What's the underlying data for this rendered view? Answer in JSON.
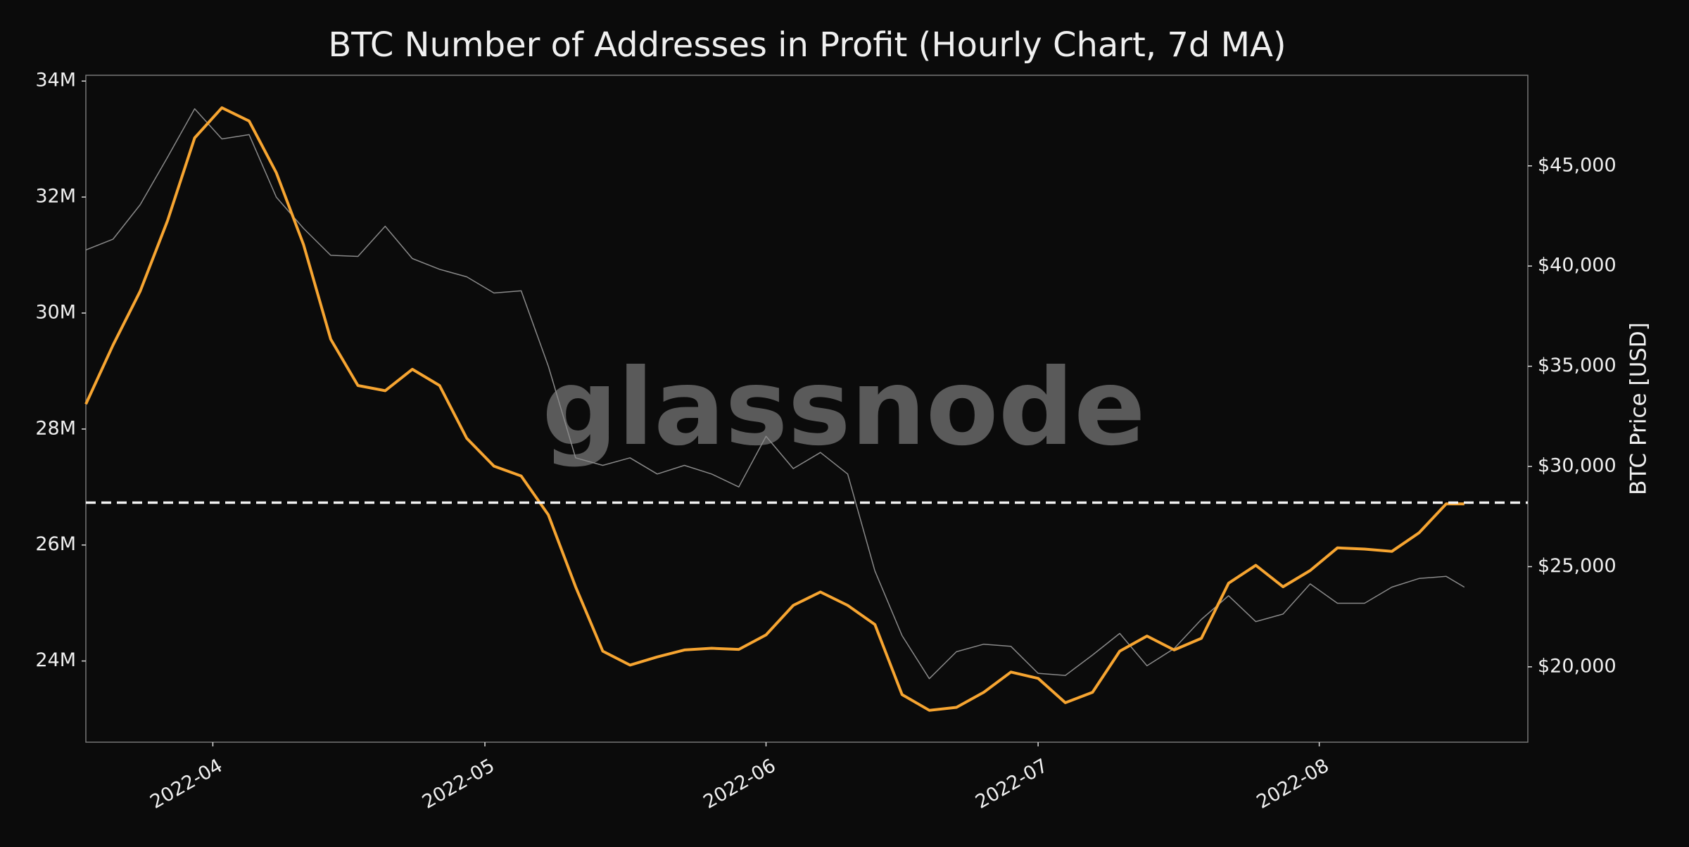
{
  "chart_data": {
    "type": "line",
    "title": "BTC Number of Addresses in Profit (Hourly Chart, 7d MA)",
    "y2label": "BTC Price [USD]",
    "watermark": "glassnode",
    "x": [
      "2022-03-18",
      "2022-03-21",
      "2022-03-24",
      "2022-03-27",
      "2022-03-30",
      "2022-04-02",
      "2022-04-05",
      "2022-04-08",
      "2022-04-11",
      "2022-04-14",
      "2022-04-17",
      "2022-04-20",
      "2022-04-23",
      "2022-04-26",
      "2022-04-29",
      "2022-05-02",
      "2022-05-05",
      "2022-05-08",
      "2022-05-11",
      "2022-05-14",
      "2022-05-17",
      "2022-05-20",
      "2022-05-23",
      "2022-05-26",
      "2022-05-29",
      "2022-06-01",
      "2022-06-04",
      "2022-06-07",
      "2022-06-10",
      "2022-06-13",
      "2022-06-16",
      "2022-06-19",
      "2022-06-22",
      "2022-06-25",
      "2022-06-28",
      "2022-07-01",
      "2022-07-04",
      "2022-07-07",
      "2022-07-10",
      "2022-07-13",
      "2022-07-16",
      "2022-07-19",
      "2022-07-22",
      "2022-07-25",
      "2022-07-28",
      "2022-07-31",
      "2022-08-03",
      "2022-08-06",
      "2022-08-09",
      "2022-08-12",
      "2022-08-15",
      "2022-08-17"
    ],
    "series": [
      {
        "color": "#8a8a8a",
        "axis": "y2",
        "values": [
          40805,
          41343,
          43063,
          45428,
          47848,
          46342,
          46557,
          43440,
          41880,
          40536,
          40482,
          41988,
          40375,
          39837,
          39461,
          38655,
          38762,
          34999,
          30430,
          30053,
          30430,
          29623,
          30053,
          29623,
          28978,
          31505,
          29892,
          30698,
          29623,
          24785,
          21559,
          19409,
          20753,
          21129,
          21021,
          19677,
          19570,
          20591,
          21667,
          20054,
          20914,
          22365,
          23548,
          22258,
          22634,
          24140,
          23172,
          23172,
          23978,
          24408,
          24516,
          23978
        ]
      },
      {
        "color": "#f7a531",
        "values": [
          28430000,
          29450000,
          30380000,
          31590000,
          33020000,
          33540000,
          33310000,
          32420000,
          31180000,
          29550000,
          28750000,
          28660000,
          29030000,
          28750000,
          27840000,
          27360000,
          27190000,
          26520000,
          25280000,
          24170000,
          23930000,
          24070000,
          24190000,
          24220000,
          24200000,
          24450000,
          24960000,
          25190000,
          24960000,
          24630000,
          23420000,
          23150000,
          23200000,
          23460000,
          23810000,
          23700000,
          23280000,
          23460000,
          24170000,
          24430000,
          24190000,
          24390000,
          25340000,
          25650000,
          25280000,
          25560000,
          25950000,
          25930000,
          25890000,
          26210000,
          26710000,
          26710000
        ]
      }
    ],
    "hline": 26730000,
    "xlim": [
      "2022-03-18",
      "2022-08-24"
    ],
    "xticks": [
      {
        "value": "2022-04-01",
        "label": "2022-04"
      },
      {
        "value": "2022-05-01",
        "label": "2022-05"
      },
      {
        "value": "2022-06-01",
        "label": "2022-06"
      },
      {
        "value": "2022-07-01",
        "label": "2022-07"
      },
      {
        "value": "2022-08-01",
        "label": "2022-08"
      }
    ],
    "ylim": [
      22600000,
      34100000
    ],
    "yticks": [
      {
        "value": 24000000,
        "label": "24M"
      },
      {
        "value": 26000000,
        "label": "26M"
      },
      {
        "value": 28000000,
        "label": "28M"
      },
      {
        "value": 30000000,
        "label": "30M"
      },
      {
        "value": 32000000,
        "label": "32M"
      },
      {
        "value": 34000000,
        "label": "34M"
      }
    ],
    "y2lim": [
      16240,
      49520
    ],
    "y2ticks": [
      {
        "value": 20000,
        "label": "$20,000"
      },
      {
        "value": 25000,
        "label": "$25,000"
      },
      {
        "value": 30000,
        "label": "$30,000"
      },
      {
        "value": 35000,
        "label": "$35,000"
      },
      {
        "value": 40000,
        "label": "$40,000"
      },
      {
        "value": 45000,
        "label": "$45,000"
      }
    ]
  }
}
